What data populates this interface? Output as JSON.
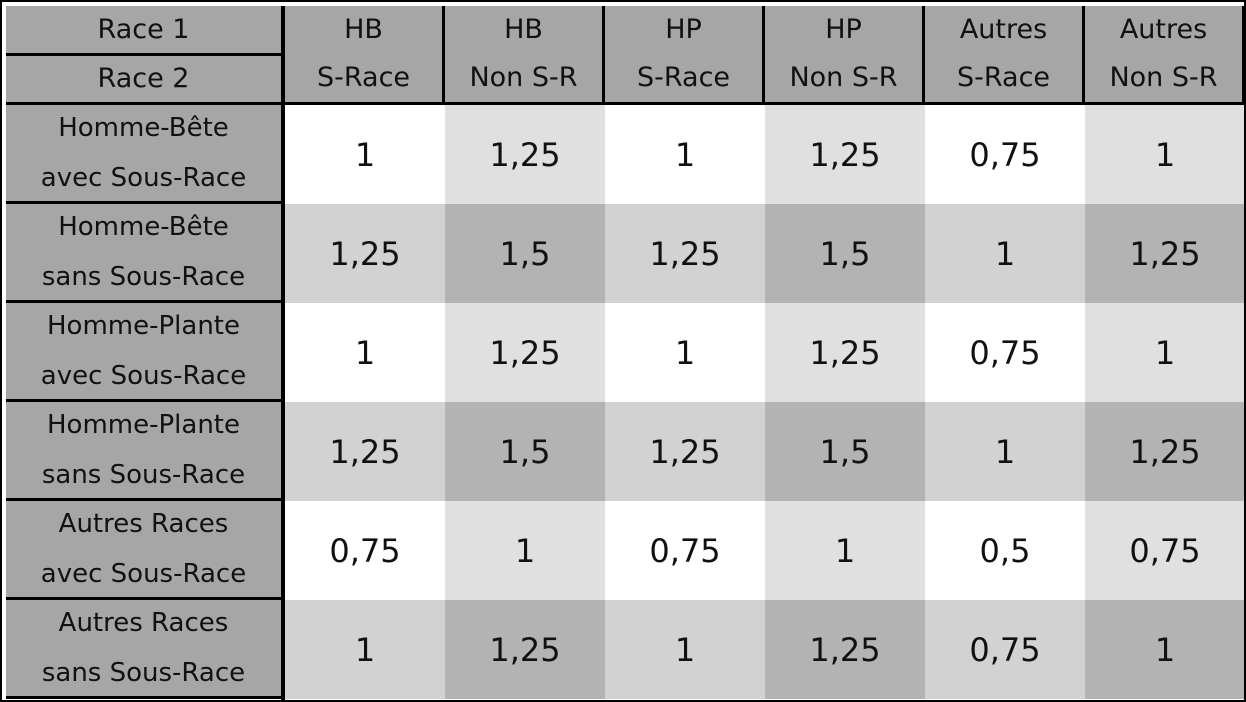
{
  "header": {
    "corner": [
      "Race 1",
      "Race 2"
    ],
    "columns": [
      [
        "HB",
        "S-Race"
      ],
      [
        "HB",
        "Non S-R"
      ],
      [
        "HP",
        "S-Race"
      ],
      [
        "HP",
        "Non S-R"
      ],
      [
        "Autres",
        "S-Race"
      ],
      [
        "Autres",
        "Non S-R"
      ]
    ]
  },
  "rows": [
    {
      "label": [
        "Homme-Bête",
        "avec Sous-Race"
      ],
      "values": [
        "1",
        "1,25",
        "1",
        "1,25",
        "0,75",
        "1"
      ]
    },
    {
      "label": [
        "Homme-Bête",
        "sans Sous-Race"
      ],
      "values": [
        "1,25",
        "1,5",
        "1,25",
        "1,5",
        "1",
        "1,25"
      ]
    },
    {
      "label": [
        "Homme-Plante",
        "avec Sous-Race"
      ],
      "values": [
        "1",
        "1,25",
        "1",
        "1,25",
        "0,75",
        "1"
      ]
    },
    {
      "label": [
        "Homme-Plante",
        "sans Sous-Race"
      ],
      "values": [
        "1,25",
        "1,5",
        "1,25",
        "1,5",
        "1",
        "1,25"
      ]
    },
    {
      "label": [
        "Autres Races",
        "avec Sous-Race"
      ],
      "values": [
        "0,75",
        "1",
        "0,75",
        "1",
        "0,5",
        "0,75"
      ]
    },
    {
      "label": [
        "Autres Races",
        "sans Sous-Race"
      ],
      "values": [
        "1",
        "1,25",
        "1",
        "1,25",
        "0,75",
        "1"
      ]
    }
  ]
}
